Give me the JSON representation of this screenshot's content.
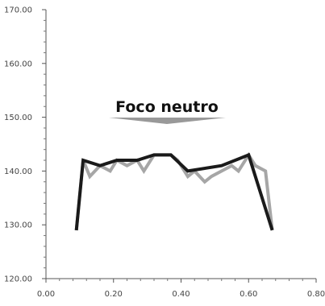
{
  "chart_data": {
    "type": "line",
    "title": "",
    "xlabel": "",
    "ylabel": "",
    "xlim": [
      0.0,
      0.8
    ],
    "ylim": [
      120.0,
      170.0
    ],
    "x_ticks": [
      "0.00",
      "0.20",
      "0.40",
      "0.60",
      "0.80"
    ],
    "x_tick_values": [
      0.0,
      0.2,
      0.4,
      0.6,
      0.8
    ],
    "y_ticks": [
      "120.00",
      "130.00",
      "140.00",
      "150.00",
      "160.00",
      "170.00"
    ],
    "y_tick_values": [
      120,
      130,
      140,
      150,
      160,
      170
    ],
    "grid": false,
    "legend": "none",
    "annotation": {
      "text": "Foco neutro",
      "color": "#999999"
    },
    "series": [
      {
        "color": "#a6a6a6",
        "x": [
          0.09,
          0.11,
          0.13,
          0.16,
          0.19,
          0.21,
          0.24,
          0.27,
          0.29,
          0.32,
          0.34,
          0.37,
          0.39,
          0.42,
          0.44,
          0.47,
          0.49,
          0.52,
          0.55,
          0.57,
          0.6,
          0.62,
          0.65,
          0.67
        ],
        "y": [
          129,
          142,
          139,
          141,
          140,
          142,
          141,
          142,
          140,
          143,
          143,
          143,
          142,
          139,
          140,
          138,
          139,
          140,
          141,
          140,
          143,
          141,
          140,
          129
        ]
      },
      {
        "color": "#1a1a1a",
        "x": [
          0.09,
          0.11,
          0.16,
          0.21,
          0.27,
          0.32,
          0.37,
          0.42,
          0.52,
          0.6,
          0.67
        ],
        "y": [
          129,
          142,
          141,
          142,
          142,
          143,
          143,
          140,
          141,
          143,
          129
        ]
      }
    ]
  }
}
